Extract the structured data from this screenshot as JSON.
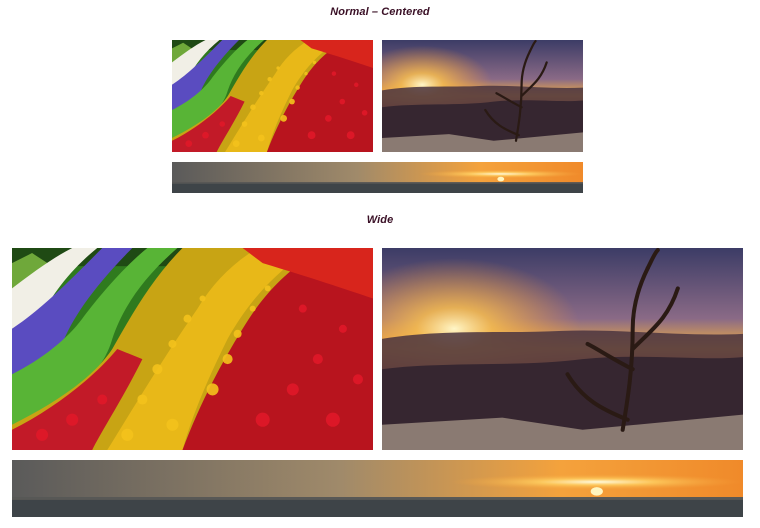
{
  "gallery": {
    "normal_heading": "Normal – Centered",
    "wide_heading": "Wide"
  },
  "images": [
    {
      "subject": "tulip-field",
      "group": "normal"
    },
    {
      "subject": "canyon-sunset-tree",
      "group": "normal"
    },
    {
      "subject": "ocean-sunset-panorama",
      "group": "normal"
    },
    {
      "subject": "tulip-field",
      "group": "wide"
    },
    {
      "subject": "canyon-sunset-tree",
      "group": "wide"
    },
    {
      "subject": "ocean-sunset-panorama",
      "group": "wide"
    }
  ],
  "colors": {
    "heading_text": "#3a1026",
    "background": "#ffffff"
  }
}
